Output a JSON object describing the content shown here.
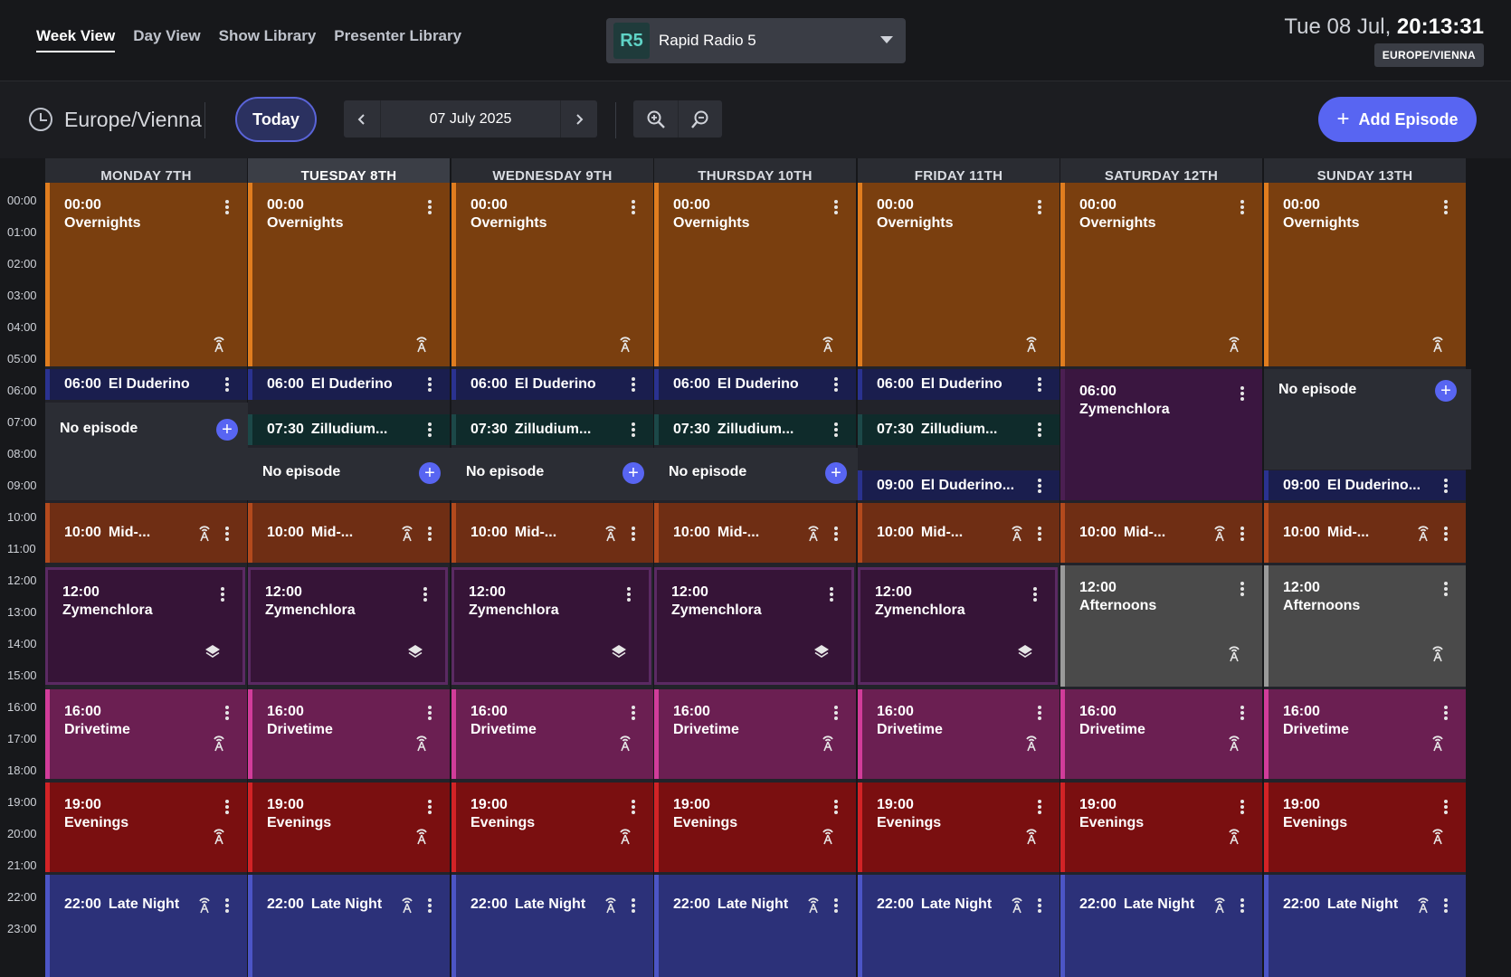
{
  "nav": {
    "tabs": [
      {
        "label": "Week View",
        "active": true
      },
      {
        "label": "Day View",
        "active": false
      },
      {
        "label": "Show Library",
        "active": false
      },
      {
        "label": "Presenter Library",
        "active": false
      }
    ]
  },
  "station": {
    "logo": "R5",
    "name": "Rapid Radio 5"
  },
  "clock": {
    "date": "Tue 08 Jul, ",
    "time": "20:13:31",
    "timezone_badge": "EUROPE/VIENNA"
  },
  "toolbar": {
    "timezone": "Europe/Vienna",
    "today_label": "Today",
    "date_label": "07 July 2025",
    "add_episode_label": "Add Episode"
  },
  "hours": [
    "00:00",
    "01:00",
    "02:00",
    "03:00",
    "04:00",
    "05:00",
    "06:00",
    "07:00",
    "08:00",
    "09:00",
    "10:00",
    "11:00",
    "12:00",
    "13:00",
    "14:00",
    "15:00",
    "16:00",
    "17:00",
    "18:00",
    "19:00",
    "20:00",
    "21:00",
    "22:00",
    "23:00"
  ],
  "days": [
    {
      "label": "MONDAY 7TH",
      "today": false
    },
    {
      "label": "TUESDAY 8TH",
      "today": true
    },
    {
      "label": "WEDNESDAY 9TH",
      "today": false
    },
    {
      "label": "THURSDAY 10TH",
      "today": false
    },
    {
      "label": "FRIDAY 11TH",
      "today": false
    },
    {
      "label": "SATURDAY 12TH",
      "today": false
    },
    {
      "label": "SUNDAY 13TH",
      "today": false
    }
  ],
  "schedule": {
    "no_episode_label": "No episode",
    "overnights": {
      "time": "00:00",
      "title": "Overnights"
    },
    "el_duderino": {
      "time": "06:00",
      "title": "El Duderino"
    },
    "zilludium": {
      "time": "07:30",
      "title": "Zilludium..."
    },
    "el_duderino_9": {
      "time": "09:00",
      "title": "El Duderino..."
    },
    "zymenchlora_sat": {
      "time": "06:00",
      "title": "Zymenchlora"
    },
    "mid": {
      "time": "10:00",
      "title": "Mid-..."
    },
    "zymenchlora": {
      "time": "12:00",
      "title": "Zymenchlora"
    },
    "afternoons": {
      "time": "12:00",
      "title": "Afternoons"
    },
    "drivetime": {
      "time": "16:00",
      "title": "Drivetime"
    },
    "evenings": {
      "time": "19:00",
      "title": "Evenings"
    },
    "late_night": {
      "time": "22:00",
      "title": "Late Night"
    }
  }
}
